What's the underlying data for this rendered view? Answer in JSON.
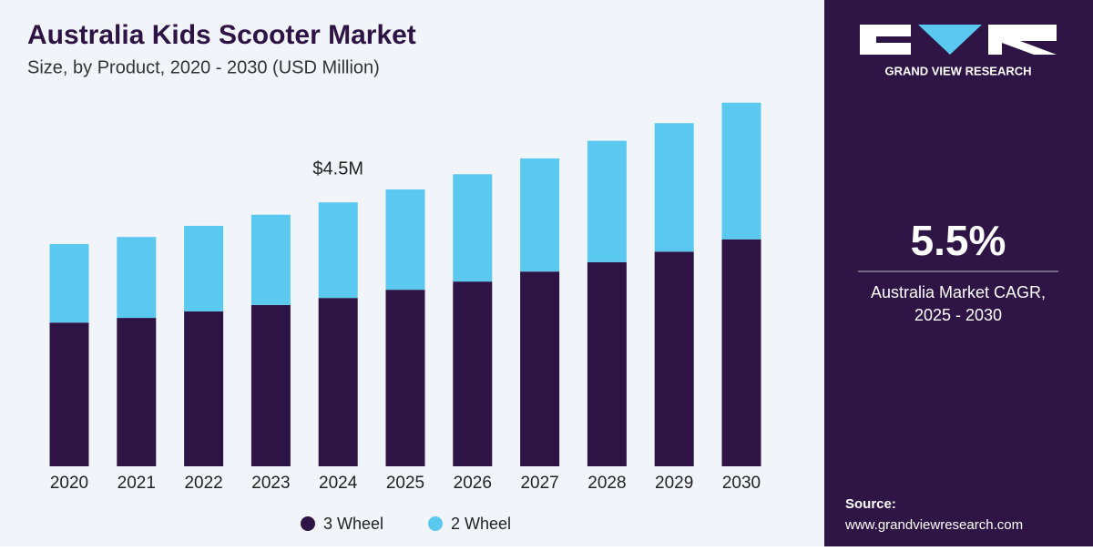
{
  "chart_data": {
    "type": "stacked_bar",
    "title": "Australia Kids Scooter Market",
    "subtitle": "Size, by Product, 2020 - 2030 (USD Million)",
    "categories": [
      "2020",
      "2021",
      "2022",
      "2023",
      "2024",
      "2025",
      "2026",
      "2027",
      "2028",
      "2029",
      "2030"
    ],
    "series": [
      {
        "name": "3 Wheel",
        "color": "#2d1444",
        "values": [
          2.45,
          2.53,
          2.64,
          2.75,
          2.87,
          3.01,
          3.15,
          3.32,
          3.48,
          3.66,
          3.87
        ]
      },
      {
        "name": "2 Wheel",
        "color": "#5bc8f0",
        "values": [
          1.34,
          1.38,
          1.46,
          1.54,
          1.63,
          1.71,
          1.83,
          1.93,
          2.07,
          2.19,
          2.33
        ]
      }
    ],
    "annotations": [
      {
        "text": "$4.5M",
        "category_index": 4,
        "value": 4.5
      }
    ],
    "legend": "bottom"
  },
  "sidebar": {
    "brand": "GRAND VIEW RESEARCH",
    "stat": "5.5%",
    "stat_caption": [
      "Australia Market CAGR,",
      "2025 - 2030"
    ],
    "source_label": "Source:",
    "source_url": "www.grandviewresearch.com"
  }
}
